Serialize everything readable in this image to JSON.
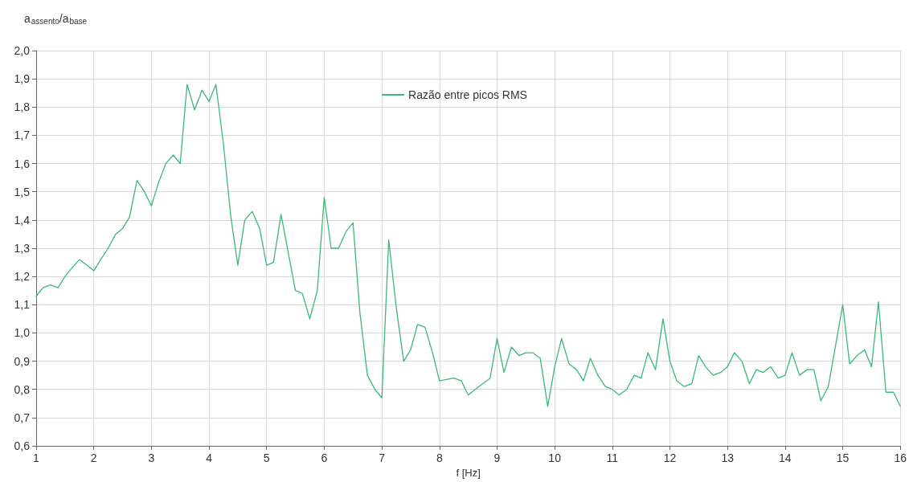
{
  "chart_data": {
    "type": "line",
    "xlabel": "f [Hz]",
    "ylabel": "a$_{assento}$/a$_{base}$",
    "x": [
      1,
      1.12,
      1.25,
      1.38,
      1.5,
      1.62,
      1.75,
      1.88,
      2,
      2.12,
      2.25,
      2.38,
      2.5,
      2.62,
      2.75,
      2.88,
      3,
      3.12,
      3.25,
      3.38,
      3.5,
      3.62,
      3.75,
      3.88,
      4,
      4.12,
      4.25,
      4.38,
      4.5,
      4.62,
      4.75,
      4.88,
      5,
      5.12,
      5.25,
      5.38,
      5.5,
      5.62,
      5.75,
      5.88,
      6,
      6.12,
      6.25,
      6.38,
      6.5,
      6.62,
      6.75,
      6.88,
      7,
      7.12,
      7.25,
      7.38,
      7.5,
      7.62,
      7.75,
      7.88,
      8,
      8.12,
      8.25,
      8.38,
      8.5,
      8.62,
      8.75,
      8.88,
      9,
      9.12,
      9.25,
      9.38,
      9.5,
      9.62,
      9.75,
      9.88,
      10,
      10.12,
      10.25,
      10.38,
      10.5,
      10.62,
      10.75,
      10.88,
      11,
      11.12,
      11.25,
      11.38,
      11.5,
      11.62,
      11.75,
      11.88,
      12,
      12.12,
      12.25,
      12.38,
      12.5,
      12.62,
      12.75,
      12.88,
      13,
      13.12,
      13.25,
      13.38,
      13.5,
      13.62,
      13.75,
      13.88,
      14,
      14.12,
      14.25,
      14.38,
      14.5,
      14.62,
      14.75,
      14.88,
      15,
      15.12,
      15.25,
      15.38,
      15.5,
      15.62,
      15.75,
      15.88,
      16
    ],
    "series": [
      {
        "name": "Razão entre picos RMS",
        "color": "#3cb878",
        "values": [
          1.13,
          1.16,
          1.17,
          1.16,
          1.2,
          1.23,
          1.26,
          1.24,
          1.22,
          1.26,
          1.3,
          1.35,
          1.37,
          1.41,
          1.54,
          1.5,
          1.45,
          1.53,
          1.6,
          1.63,
          1.6,
          1.88,
          1.79,
          1.86,
          1.82,
          1.88,
          1.67,
          1.41,
          1.24,
          1.4,
          1.43,
          1.37,
          1.24,
          1.25,
          1.42,
          1.28,
          1.15,
          1.14,
          1.05,
          1.15,
          1.48,
          1.3,
          1.3,
          1.36,
          1.39,
          1.07,
          0.85,
          0.8,
          0.77,
          1.33,
          1.09,
          0.9,
          0.94,
          1.03,
          1.02,
          0.93,
          0.83,
          0.835,
          0.84,
          0.83,
          0.78,
          0.8,
          0.82,
          0.84,
          0.98,
          0.86,
          0.95,
          0.92,
          0.93,
          0.93,
          0.91,
          0.74,
          0.88,
          0.98,
          0.89,
          0.87,
          0.83,
          0.91,
          0.85,
          0.81,
          0.8,
          0.78,
          0.8,
          0.85,
          0.84,
          0.93,
          0.87,
          1.05,
          0.9,
          0.83,
          0.81,
          0.82,
          0.92,
          0.88,
          0.85,
          0.86,
          0.88,
          0.93,
          0.9,
          0.82,
          0.87,
          0.86,
          0.88,
          0.84,
          0.85,
          0.93,
          0.85,
          0.87,
          0.87,
          0.76,
          0.81,
          0.96,
          1.1,
          0.89,
          0.92,
          0.94,
          0.88,
          1.11,
          0.79,
          0.79,
          0.74
        ]
      }
    ],
    "xlim": [
      1,
      16
    ],
    "xticks": [
      1,
      2,
      3,
      4,
      5,
      6,
      7,
      8,
      9,
      10,
      11,
      12,
      13,
      14,
      15,
      16
    ],
    "ylim": [
      0.6,
      2.0
    ],
    "yticks": [
      {
        "value": 0.6,
        "label": "0,6"
      },
      {
        "value": 0.7,
        "label": "0,7"
      },
      {
        "value": 0.8,
        "label": "0,8"
      },
      {
        "value": 0.9,
        "label": "0,9"
      },
      {
        "value": 1.0,
        "label": "1,0"
      },
      {
        "value": 1.1,
        "label": "1,1"
      },
      {
        "value": 1.2,
        "label": "1,2"
      },
      {
        "value": 1.3,
        "label": "1,3"
      },
      {
        "value": 1.4,
        "label": "1,4"
      },
      {
        "value": 1.5,
        "label": "1,5"
      },
      {
        "value": 1.6,
        "label": "1,6"
      },
      {
        "value": 1.7,
        "label": "1,7"
      },
      {
        "value": 1.8,
        "label": "1,8"
      },
      {
        "value": 1.9,
        "label": "1,9"
      },
      {
        "value": 2.0,
        "label": "2,0"
      }
    ],
    "grid": true,
    "legend": "top",
    "marker": "none",
    "line_style": "solid"
  }
}
